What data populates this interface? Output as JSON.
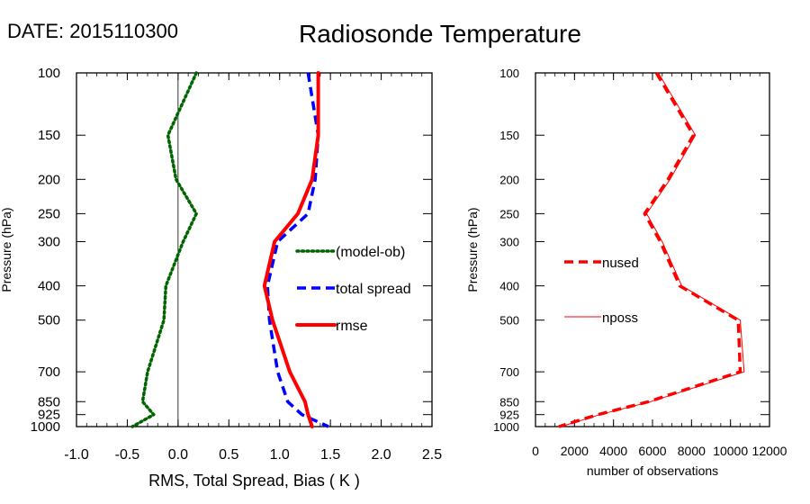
{
  "header": {
    "date_label": "DATE: 2015110300",
    "title": "Radiosonde Temperature"
  },
  "chart_data": [
    {
      "type": "line",
      "panel": "left",
      "xlabel": "RMS, Total Spread, Bias ( K )",
      "ylabel": "Pressure (hPa)",
      "xlim": [
        -1.0,
        2.5
      ],
      "ylim": [
        1000,
        100
      ],
      "y_scale": "log",
      "x_tick_labels": [
        "-1.0",
        "-0.5",
        "0.0",
        "0.5",
        "1.0",
        "1.5",
        "2.0",
        "2.5"
      ],
      "y_tick_labels": [
        "100",
        "150",
        "200",
        "250",
        "300",
        "400",
        "500",
        "700",
        "850",
        "925",
        "1000"
      ],
      "zero_line_x": 0,
      "legend_position": "right",
      "series": [
        {
          "name": "(model-ob)",
          "color": "#006400",
          "style": "dotted",
          "points": [
            [
              0.18,
              100
            ],
            [
              -0.1,
              150
            ],
            [
              -0.02,
              200
            ],
            [
              0.18,
              250
            ],
            [
              0.05,
              300
            ],
            [
              -0.12,
              400
            ],
            [
              -0.14,
              500
            ],
            [
              -0.3,
              700
            ],
            [
              -0.35,
              850
            ],
            [
              -0.24,
              925
            ],
            [
              -0.45,
              1000
            ]
          ]
        },
        {
          "name": "total spread",
          "color": "#0000ff",
          "style": "dashed",
          "points": [
            [
              1.28,
              100
            ],
            [
              1.38,
              150
            ],
            [
              1.35,
              200
            ],
            [
              1.28,
              250
            ],
            [
              0.98,
              300
            ],
            [
              0.88,
              400
            ],
            [
              0.9,
              500
            ],
            [
              0.98,
              700
            ],
            [
              1.08,
              850
            ],
            [
              1.22,
              925
            ],
            [
              1.48,
              1000
            ]
          ]
        },
        {
          "name": "rmse",
          "color": "#ff0000",
          "style": "solid",
          "points": [
            [
              1.38,
              100
            ],
            [
              1.38,
              150
            ],
            [
              1.32,
              200
            ],
            [
              1.18,
              250
            ],
            [
              0.95,
              300
            ],
            [
              0.85,
              400
            ],
            [
              0.93,
              500
            ],
            [
              1.1,
              700
            ],
            [
              1.25,
              850
            ],
            [
              1.28,
              925
            ],
            [
              1.32,
              1000
            ]
          ]
        }
      ]
    },
    {
      "type": "line",
      "panel": "right",
      "xlabel": "number of observations",
      "ylabel": "Pressure (hPa)",
      "xlim": [
        0,
        12000
      ],
      "ylim": [
        1000,
        100
      ],
      "y_scale": "log",
      "x_tick_labels": [
        "0",
        "2000",
        "4000",
        "6000",
        "8000",
        "10000",
        "12000"
      ],
      "y_tick_labels": [
        "100",
        "150",
        "200",
        "250",
        "300",
        "400",
        "500",
        "700",
        "850",
        "925",
        "1000"
      ],
      "legend_position": "left",
      "series": [
        {
          "name": "nused",
          "color": "#ff0000",
          "style": "dashed",
          "points": [
            [
              6200,
              100
            ],
            [
              8100,
              150
            ],
            [
              6800,
              200
            ],
            [
              5600,
              250
            ],
            [
              6400,
              300
            ],
            [
              7400,
              400
            ],
            [
              10400,
              500
            ],
            [
              10500,
              700
            ],
            [
              5800,
              850
            ],
            [
              3200,
              925
            ],
            [
              1200,
              1000
            ]
          ]
        },
        {
          "name": "nposs",
          "color": "#ff0000",
          "style": "thin",
          "points": [
            [
              6300,
              100
            ],
            [
              8200,
              150
            ],
            [
              6900,
              200
            ],
            [
              5700,
              250
            ],
            [
              6500,
              300
            ],
            [
              7500,
              400
            ],
            [
              10500,
              500
            ],
            [
              10700,
              700
            ],
            [
              5900,
              850
            ],
            [
              3300,
              925
            ],
            [
              1300,
              1000
            ]
          ]
        }
      ]
    }
  ]
}
